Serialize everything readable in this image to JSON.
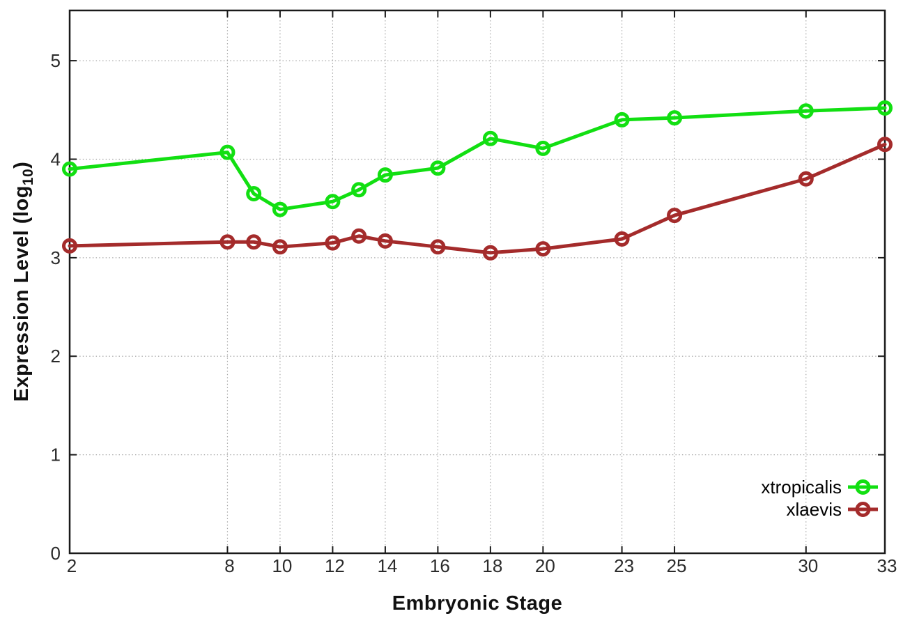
{
  "chart_data": {
    "type": "line",
    "title": "",
    "xlabel": "Embryonic Stage",
    "ylabel": "Expression Level (log10)",
    "ylabel_parts": {
      "main": "Expression Level (log",
      "sub": "10",
      "close": ")"
    },
    "x": [
      2,
      8,
      9,
      10,
      12,
      13,
      14,
      16,
      18,
      20,
      23,
      25,
      30,
      33
    ],
    "series": [
      {
        "name": "xtropicalis",
        "color": "#12df12",
        "values": [
          3.9,
          4.07,
          3.65,
          3.49,
          3.57,
          3.69,
          3.84,
          3.91,
          4.21,
          4.11,
          4.4,
          4.42,
          4.49,
          4.52
        ]
      },
      {
        "name": "xlaevis",
        "color": "#a42b2b",
        "values": [
          3.12,
          3.16,
          3.16,
          3.11,
          3.15,
          3.22,
          3.17,
          3.11,
          3.05,
          3.09,
          3.19,
          3.43,
          3.8,
          4.15
        ]
      }
    ],
    "xticks": [
      2,
      8,
      10,
      12,
      14,
      16,
      18,
      20,
      23,
      25,
      30,
      33
    ],
    "yticks": [
      0,
      1,
      2,
      3,
      4,
      5
    ],
    "xlim": [
      2,
      33
    ],
    "ylim": [
      0,
      5.51
    ],
    "grid": true,
    "legend_position": "bottom-right"
  },
  "style": {
    "grid_color": "#a8a8a8",
    "axis_color": "#1a1a1a",
    "tick_label_color": "#2b2b2b",
    "legend_text_color": "#000000"
  }
}
